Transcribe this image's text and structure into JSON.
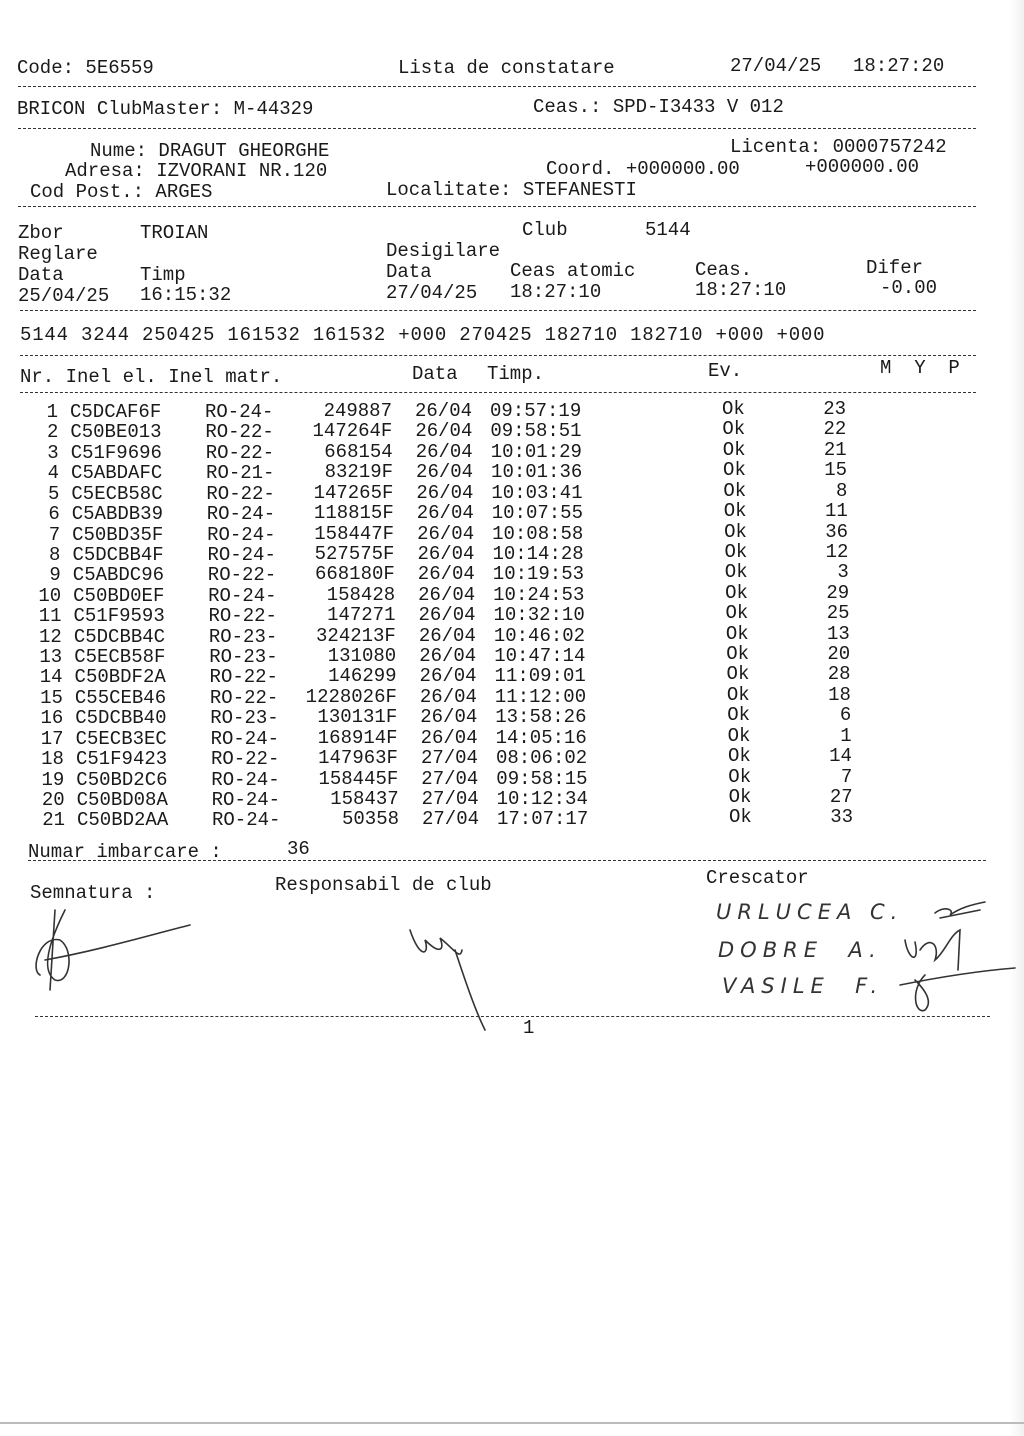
{
  "header": {
    "code": "Code: 5E6559",
    "title": "Lista de constatare",
    "date": "27/04/25",
    "time": "18:27:20"
  },
  "club_master": {
    "label": "BRICON ClubMaster: M-44329",
    "clock": "Ceas.: SPD-I3433 V 012"
  },
  "owner": {
    "name": "Nume: DRAGUT GHEORGHE",
    "license": "Licenta: 0000757242",
    "address": "Adresa: IZVORANI NR.120",
    "coord_label": "Coord. +000000.00",
    "coord_2": "+000000.00",
    "postal": "Cod Post.: ARGES",
    "locality": "Localitate: STEFANESTI"
  },
  "flight": {
    "zbor_label": "Zbor",
    "zbor_value": "TROIAN",
    "club_label": "Club",
    "club_value": "5144",
    "reglare": "Reglare",
    "desigilare": "Desigilare",
    "data_label": "Data",
    "timp_label": "Timp",
    "data_label_2": "Data",
    "ceas_atomic_label": "Ceas atomic",
    "ceas_label": "Ceas.",
    "difer_label": "Difer",
    "reglare_date": "25/04/25",
    "reglare_time": "16:15:32",
    "desig_date": "27/04/25",
    "atomic_time": "18:27:10",
    "clock_time": "18:27:10",
    "difer_value": "-0.00"
  },
  "code_line": "5144 3244 250425 161532 161532 +000 270425 182710 182710 +000 +000",
  "table": {
    "col_nr_inel": "Nr. Inel el. Inel matr.",
    "col_data": "Data",
    "col_timp": "Timp.",
    "col_ev": "Ev.",
    "col_myp": "M  Y  P",
    "rows": [
      [
        "1",
        "C5DCAF6F",
        "RO-24-",
        "249887",
        "26/04",
        "09:57:19",
        "Ok",
        "23"
      ],
      [
        "2",
        "C50BE013",
        "RO-22-",
        "147264F",
        "26/04",
        "09:58:51",
        "Ok",
        "22"
      ],
      [
        "3",
        "C51F9696",
        "RO-22-",
        "668154",
        "26/04",
        "10:01:29",
        "Ok",
        "21"
      ],
      [
        "4",
        "C5ABDAFC",
        "RO-21-",
        "83219F",
        "26/04",
        "10:01:36",
        "Ok",
        "15"
      ],
      [
        "5",
        "C5ECB58C",
        "RO-22-",
        "147265F",
        "26/04",
        "10:03:41",
        "Ok",
        "8"
      ],
      [
        "6",
        "C5ABDB39",
        "RO-24-",
        "118815F",
        "26/04",
        "10:07:55",
        "Ok",
        "11"
      ],
      [
        "7",
        "C50BD35F",
        "RO-24-",
        "158447F",
        "26/04",
        "10:08:58",
        "Ok",
        "36"
      ],
      [
        "8",
        "C5DCBB4F",
        "RO-24-",
        "527575F",
        "26/04",
        "10:14:28",
        "Ok",
        "12"
      ],
      [
        "9",
        "C5ABDC96",
        "RO-22-",
        "668180F",
        "26/04",
        "10:19:53",
        "Ok",
        "3"
      ],
      [
        "10",
        "C50BD0EF",
        "RO-24-",
        "158428",
        "26/04",
        "10:24:53",
        "Ok",
        "29"
      ],
      [
        "11",
        "C51F9593",
        "RO-22-",
        "147271",
        "26/04",
        "10:32:10",
        "Ok",
        "25"
      ],
      [
        "12",
        "C5DCBB4C",
        "RO-23-",
        "324213F",
        "26/04",
        "10:46:02",
        "Ok",
        "13"
      ],
      [
        "13",
        "C5ECB58F",
        "RO-23-",
        "131080",
        "26/04",
        "10:47:14",
        "Ok",
        "20"
      ],
      [
        "14",
        "C50BDF2A",
        "RO-22-",
        "146299",
        "26/04",
        "11:09:01",
        "Ok",
        "28"
      ],
      [
        "15",
        "C55CEB46",
        "RO-22-",
        "1228026F",
        "26/04",
        "11:12:00",
        "Ok",
        "18"
      ],
      [
        "16",
        "C5DCBB40",
        "RO-23-",
        "130131F",
        "26/04",
        "13:58:26",
        "Ok",
        "6"
      ],
      [
        "17",
        "C5ECB3EC",
        "RO-24-",
        "168914F",
        "26/04",
        "14:05:16",
        "Ok",
        "1"
      ],
      [
        "18",
        "C51F9423",
        "RO-22-",
        "147963F",
        "27/04",
        "08:06:02",
        "Ok",
        "14"
      ],
      [
        "19",
        "C50BD2C6",
        "RO-24-",
        "158445F",
        "27/04",
        "09:58:15",
        "Ok",
        "7"
      ],
      [
        "20",
        "C50BD08A",
        "RO-24-",
        "158437",
        "27/04",
        "10:12:34",
        "Ok",
        "27"
      ],
      [
        "21",
        "C50BD2AA",
        "RO-24-",
        "50358",
        "27/04",
        "17:07:17",
        "Ok",
        "33"
      ]
    ]
  },
  "footer": {
    "numar_label": "Numar imbarcare :",
    "numar_value": "36",
    "semnatura": "Semnatura :",
    "responsabil": "Responsabil de club",
    "crescator": "Crescator",
    "handwritten": [
      "URLUCEA C.",
      "DOBRE  A.",
      "VASILE  F."
    ],
    "page_number": "1"
  }
}
